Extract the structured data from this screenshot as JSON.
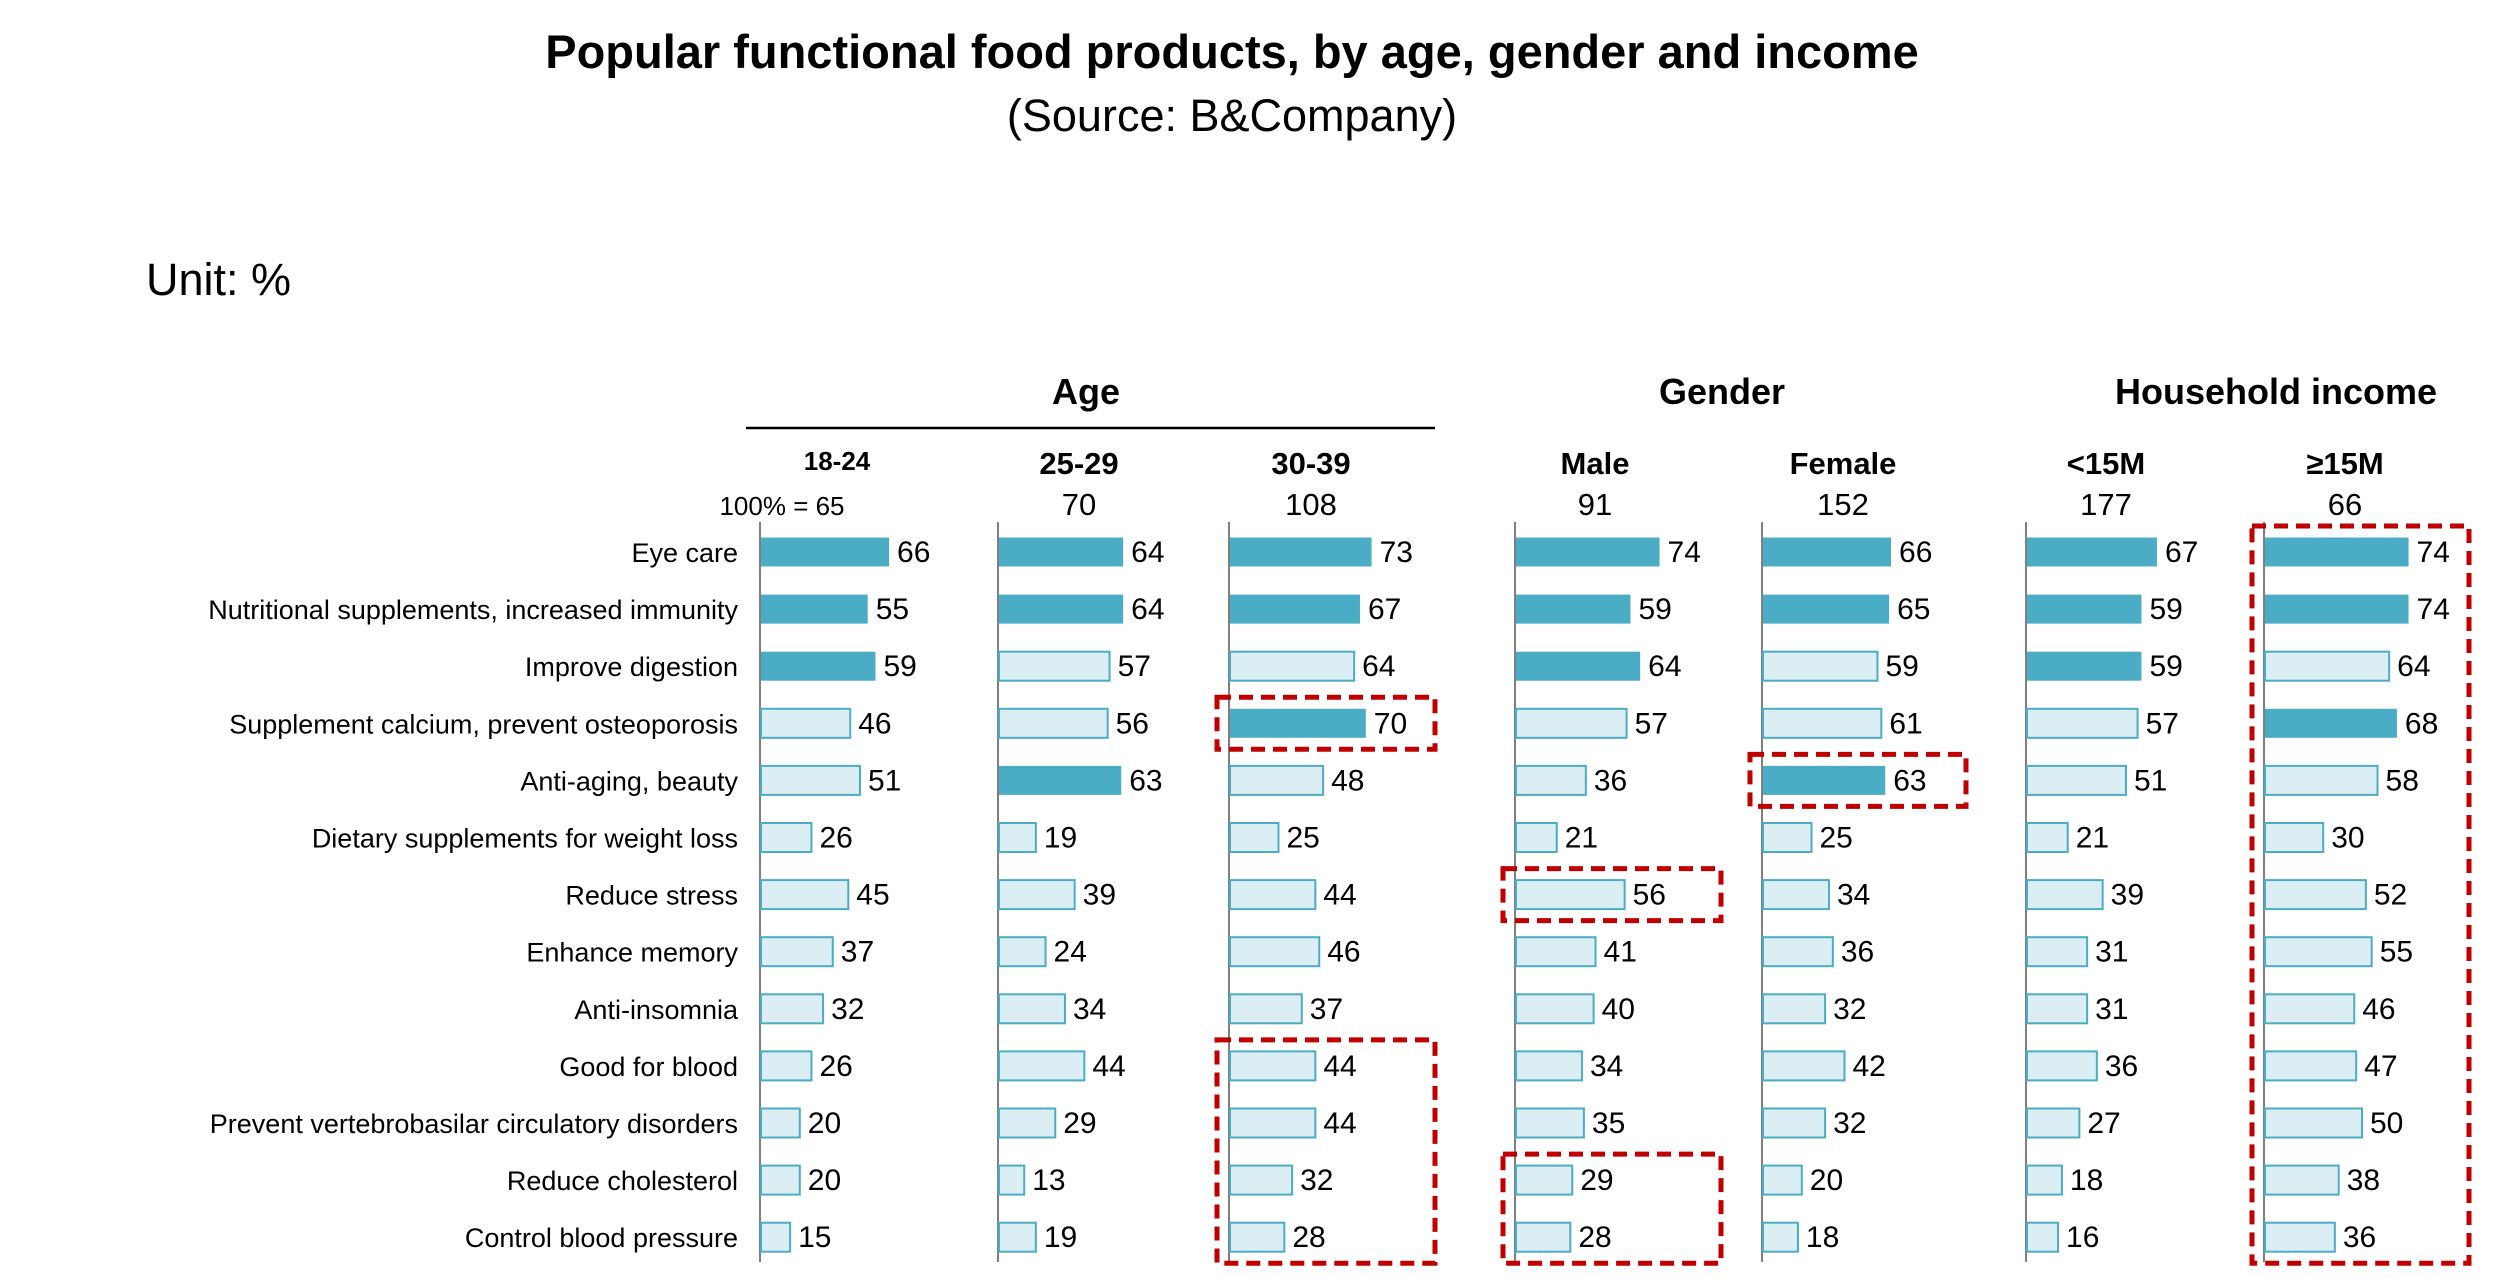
{
  "title": "Popular functional food products, by age, gender and income",
  "subtitle": "(Source: B&Company)",
  "unit": "Unit: %",
  "colors": {
    "highlight": "#4bacc6",
    "normal_fill": "#daeef3",
    "bar_border": "#4bacc6",
    "box": "#c00000",
    "axis": "#7f7f7f"
  },
  "chart_data": {
    "type": "bar",
    "orientation": "horizontal",
    "title": "Popular functional food products, by age, gender and income",
    "subtitle": "(Source: B&Company)",
    "unit": "Unit: %",
    "groups": [
      {
        "name": "Age",
        "columns": [
          "18-24",
          "25-29",
          "30-39"
        ]
      },
      {
        "name": "Gender",
        "columns": [
          "Male",
          "Female"
        ]
      },
      {
        "name": "Household income",
        "columns": [
          "<15M",
          "≥15M"
        ]
      }
    ],
    "base_prefix": "100% = ",
    "categories": [
      "Eye care",
      "Nutritional supplements, increased immunity",
      "Improve digestion",
      "Supplement calcium, prevent osteoporosis",
      "Anti-aging, beauty",
      "Dietary supplements for weight loss",
      "Reduce stress",
      "Enhance memory",
      "Anti-insomnia",
      "Good for blood",
      "Prevent vertebrobasilar circulatory disorders",
      "Reduce cholesterol",
      "Control blood pressure"
    ],
    "series": [
      {
        "name": "18-24",
        "base": "65",
        "values": [
          66,
          55,
          59,
          46,
          51,
          26,
          45,
          37,
          32,
          26,
          20,
          20,
          15
        ],
        "top3": [
          0,
          1,
          2
        ]
      },
      {
        "name": "25-29",
        "base": "70",
        "values": [
          64,
          64,
          57,
          56,
          63,
          19,
          39,
          24,
          34,
          44,
          29,
          13,
          19
        ],
        "top3": [
          0,
          1,
          4
        ]
      },
      {
        "name": "30-39",
        "base": "108",
        "values": [
          73,
          67,
          64,
          70,
          48,
          25,
          44,
          46,
          37,
          44,
          44,
          32,
          28
        ],
        "top3": [
          0,
          1,
          3
        ]
      },
      {
        "name": "Male",
        "base": "91",
        "values": [
          74,
          59,
          64,
          57,
          36,
          21,
          56,
          41,
          40,
          34,
          35,
          29,
          28
        ],
        "top3": [
          0,
          1,
          2
        ]
      },
      {
        "name": "Female",
        "base": "152",
        "values": [
          66,
          65,
          59,
          61,
          63,
          25,
          34,
          36,
          32,
          42,
          32,
          20,
          18
        ],
        "top3": [
          0,
          1,
          4
        ]
      },
      {
        "name": "<15M",
        "base": "177",
        "values": [
          67,
          59,
          59,
          57,
          51,
          21,
          39,
          31,
          31,
          36,
          27,
          18,
          16
        ],
        "top3": [
          0,
          1,
          2
        ]
      },
      {
        "name": "≥15M",
        "base": "66",
        "values": [
          74,
          74,
          64,
          68,
          58,
          30,
          52,
          55,
          46,
          47,
          50,
          38,
          36
        ],
        "top3": [
          0,
          1,
          3
        ]
      }
    ],
    "highlight_boxes": [
      {
        "series": 2,
        "rows": [
          3,
          3
        ]
      },
      {
        "series": 2,
        "rows": [
          9,
          12
        ]
      },
      {
        "series": 3,
        "rows": [
          6,
          6
        ]
      },
      {
        "series": 3,
        "rows": [
          11,
          12
        ]
      },
      {
        "series": 4,
        "rows": [
          4,
          4
        ]
      },
      {
        "series": 6,
        "rows": [
          0,
          12
        ]
      }
    ]
  }
}
